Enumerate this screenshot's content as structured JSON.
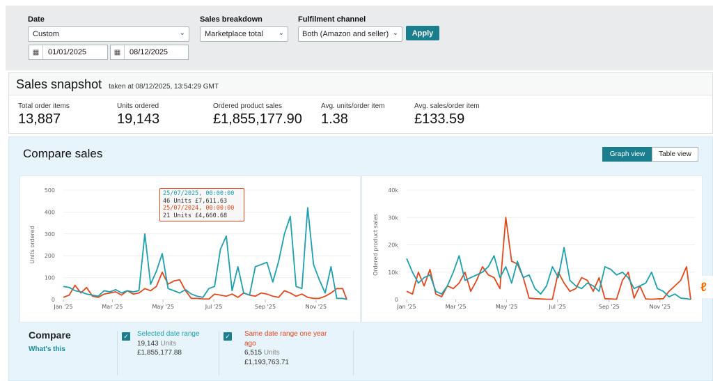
{
  "filters": {
    "date_label": "Date",
    "date_value": "Custom",
    "start_date": "01/01/2025",
    "end_date": "08/12/2025",
    "breakdown_label": "Sales breakdown",
    "breakdown_value": "Marketplace total",
    "channel_label": "Fulfilment channel",
    "channel_value": "Both (Amazon and seller)",
    "apply": "Apply"
  },
  "snapshot": {
    "title": "Sales snapshot",
    "taken": "taken at 08/12/2025, 13:54:29 GMT",
    "metrics": [
      {
        "label": "Total order items",
        "value": "13,887"
      },
      {
        "label": "Units ordered",
        "value": "19,143"
      },
      {
        "label": "Ordered product sales",
        "value": "£1,855,177.90"
      },
      {
        "label": "Avg. units/order item",
        "value": "1.38"
      },
      {
        "label": "Avg. sales/order item",
        "value": "£133.59"
      }
    ]
  },
  "compare": {
    "title": "Compare sales",
    "graph_view": "Graph view",
    "table_view": "Table view",
    "active_view": "Graph view",
    "legend_title": "Compare",
    "whats_this": "What's this",
    "selected": {
      "label": "Selected date range",
      "units": "19,143",
      "units_word": "Units",
      "sales": "£1,855,177.88",
      "checked": true
    },
    "previous": {
      "label": "Same date range one year ago",
      "units": "6,515",
      "units_word": "Units",
      "sales": "£1,193,763.71",
      "checked": true
    },
    "tooltip": {
      "date1": "25/07/2025, 00:00:00",
      "line1": "46 Units £7,611.63",
      "date2": "25/07/2024, 00:00:00",
      "line2": "21 Units £4,660.68"
    }
  },
  "colors": {
    "current": "#1aa0b0",
    "previous": "#e4471a",
    "accent": "#1a7e8f"
  },
  "chart_data": [
    {
      "type": "line",
      "ylabel": "Units ordered",
      "ylim": [
        0,
        500
      ],
      "yticks": [
        "0",
        "100",
        "200",
        "300",
        "400",
        "500"
      ],
      "xticks": [
        "Jan '25",
        "Mar '25",
        "May '25",
        "Jul '25",
        "Sep '25",
        "Nov '25"
      ],
      "grid": true,
      "x": [
        "2025-01-01",
        "2025-01-08",
        "2025-01-15",
        "2025-01-22",
        "2025-01-29",
        "2025-02-05",
        "2025-02-12",
        "2025-02-19",
        "2025-02-26",
        "2025-03-05",
        "2025-03-12",
        "2025-03-19",
        "2025-03-26",
        "2025-04-02",
        "2025-04-09",
        "2025-04-16",
        "2025-04-23",
        "2025-04-30",
        "2025-05-07",
        "2025-05-14",
        "2025-05-21",
        "2025-05-28",
        "2025-06-04",
        "2025-06-11",
        "2025-06-18",
        "2025-06-25",
        "2025-07-02",
        "2025-07-09",
        "2025-07-16",
        "2025-07-23",
        "2025-07-30",
        "2025-08-06",
        "2025-08-13",
        "2025-08-20",
        "2025-08-27",
        "2025-09-03",
        "2025-09-10",
        "2025-09-17",
        "2025-09-24",
        "2025-10-01",
        "2025-10-08",
        "2025-10-15",
        "2025-10-22",
        "2025-10-29",
        "2025-11-05",
        "2025-11-12",
        "2025-11-19",
        "2025-11-26",
        "2025-12-03",
        "2025-12-08"
      ],
      "series": [
        {
          "values": [
            60,
            55,
            40,
            35,
            25,
            20,
            15,
            40,
            35,
            45,
            30,
            40,
            35,
            40,
            300,
            70,
            130,
            210,
            50,
            40,
            30,
            45,
            25,
            15,
            10,
            50,
            60,
            230,
            290,
            40,
            150,
            30,
            20,
            150,
            160,
            170,
            80,
            175,
            300,
            380,
            60,
            50,
            420,
            160,
            90,
            30,
            150,
            5,
            5,
            0
          ]
        },
        {
          "values": [
            10,
            20,
            65,
            30,
            55,
            15,
            10,
            25,
            30,
            35,
            20,
            40,
            25,
            30,
            50,
            40,
            60,
            125,
            70,
            85,
            90,
            40,
            5,
            5,
            3,
            2,
            25,
            20,
            15,
            25,
            10,
            30,
            20,
            15,
            30,
            25,
            15,
            10,
            40,
            30,
            15,
            25,
            10,
            5,
            5,
            15,
            30,
            50,
            50,
            0
          ]
        }
      ]
    },
    {
      "type": "line",
      "ylabel": "Ordered product sales",
      "ylim": [
        0,
        40000
      ],
      "yticks": [
        "0",
        "10k",
        "20k",
        "30k",
        "40k"
      ],
      "xticks": [
        "Jan '25",
        "Mar '25",
        "May '25",
        "Jul '25",
        "Sep '25",
        "Nov '25"
      ],
      "grid": true,
      "series": [
        {
          "values": [
            15000,
            10000,
            6000,
            8000,
            9000,
            3000,
            2000,
            5000,
            10000,
            16000,
            7000,
            8000,
            9000,
            10000,
            12000,
            16000,
            8000,
            12000,
            6000,
            14000,
            8000,
            9000,
            4000,
            2000,
            5000,
            12000,
            8000,
            19000,
            7000,
            5000,
            4000,
            6000,
            5000,
            3000,
            12000,
            11000,
            9000,
            10000,
            8000,
            4000,
            5000,
            6000,
            10000,
            4000,
            3000,
            1000,
            2000,
            500,
            300,
            0
          ]
        },
        {
          "values": [
            3000,
            2000,
            10000,
            5000,
            11000,
            2000,
            1000,
            5000,
            4000,
            6000,
            10000,
            3000,
            7000,
            12000,
            9000,
            8000,
            4000,
            30000,
            14000,
            13000,
            8000,
            500,
            300,
            200,
            100,
            100,
            10000,
            6000,
            3000,
            4000,
            8000,
            7000,
            3000,
            8000,
            300,
            200,
            100,
            7000,
            10000,
            500,
            5000,
            200,
            100,
            200,
            300,
            3000,
            5000,
            7000,
            12000,
            0
          ]
        }
      ]
    }
  ]
}
